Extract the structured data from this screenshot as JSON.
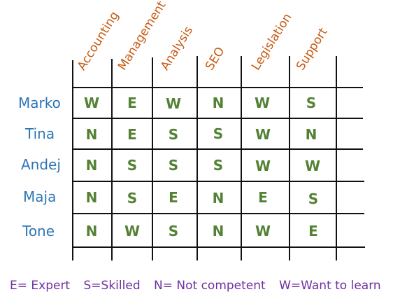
{
  "skills": [
    "Accounting",
    "Management",
    "Analysis",
    "SEO",
    "Legislation",
    "Support"
  ],
  "rows": [
    {
      "name": "Marko",
      "values": [
        "W",
        "E",
        "W",
        "N",
        "W",
        "S"
      ]
    },
    {
      "name": "Tina",
      "values": [
        "N",
        "E",
        "S",
        "S",
        "W",
        "N"
      ]
    },
    {
      "name": "Andej",
      "values": [
        "N",
        "S",
        "S",
        "S",
        "W",
        "W"
      ]
    },
    {
      "name": "Maja",
      "values": [
        "N",
        "S",
        "E",
        "N",
        "E",
        "S"
      ]
    },
    {
      "name": "Tone",
      "values": [
        "N",
        "W",
        "S",
        "N",
        "W",
        "E"
      ]
    }
  ],
  "legend": [
    "E= Expert",
    "S=Skilled",
    "N= Not competent",
    "W=Want to learn"
  ],
  "colors": {
    "skill_header": "#C55A11",
    "name": "#2E75B6",
    "value": "#548235",
    "legend": "#7030A0",
    "grid": "#111111"
  }
}
